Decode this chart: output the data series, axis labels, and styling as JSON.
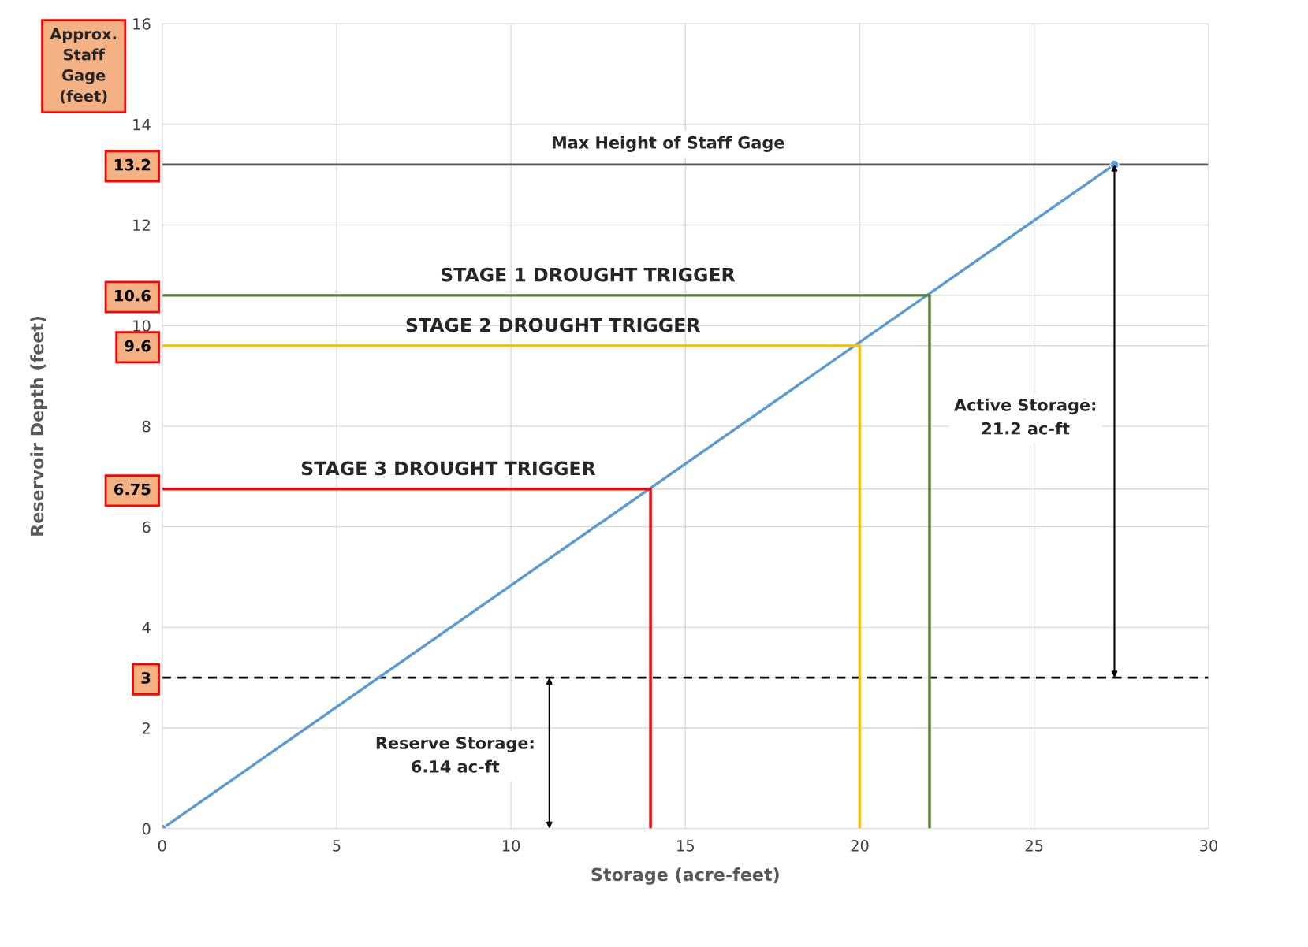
{
  "chart_data": {
    "type": "line",
    "xlabel": "Storage (acre-feet)",
    "ylabel": "Reservoir Depth (feet)",
    "xlim": [
      0,
      30
    ],
    "xticks": [
      0,
      5,
      10,
      15,
      20,
      25,
      30
    ],
    "ylim": [
      0,
      16
    ],
    "yticks": [
      0,
      2,
      {
        "value": 3,
        "label": "3"
      },
      4,
      6,
      {
        "value": 6.75,
        "label": "6.75"
      },
      8,
      {
        "value": 9.6,
        "label": "9.6"
      },
      10,
      {
        "value": 10.6,
        "label": "10.6"
      },
      12,
      {
        "value": 13.2,
        "label": "13.2"
      },
      14,
      16
    ],
    "grid": true,
    "legend": false,
    "series": [
      {
        "color": "#5b9bd5",
        "marker": "circle",
        "x": [
          0,
          27.3
        ],
        "values": [
          0,
          13.2
        ]
      },
      {
        "name": "STAGE 1 DROUGHT TRIGGER",
        "color": "#548235",
        "x": [
          0,
          22,
          22
        ],
        "values": [
          10.6,
          10.6,
          0
        ]
      },
      {
        "name": "STAGE 2 DROUGHT TRIGGER",
        "color": "#ffc000",
        "x": [
          0,
          20,
          20
        ],
        "values": [
          9.6,
          9.6,
          0
        ]
      },
      {
        "name": "STAGE 3 DROUGHT TRIGGER",
        "color": "#ff0000",
        "x": [
          0,
          14,
          14
        ],
        "values": [
          6.75,
          6.75,
          0
        ]
      }
    ],
    "ref_lines": [
      {
        "axis": "y",
        "value": 13.2,
        "label": "Max Height of Staff Gage",
        "color": "#595959",
        "line_style": "solid"
      },
      {
        "axis": "y",
        "value": 3,
        "color": "#000000",
        "line_style": "dashed"
      }
    ],
    "annotations": [
      "Approx. Staff Gage (feet)",
      "Active Storage:\n21.2 ac-ft",
      "Reserve Storage:\n6.14 ac-ft"
    ]
  }
}
